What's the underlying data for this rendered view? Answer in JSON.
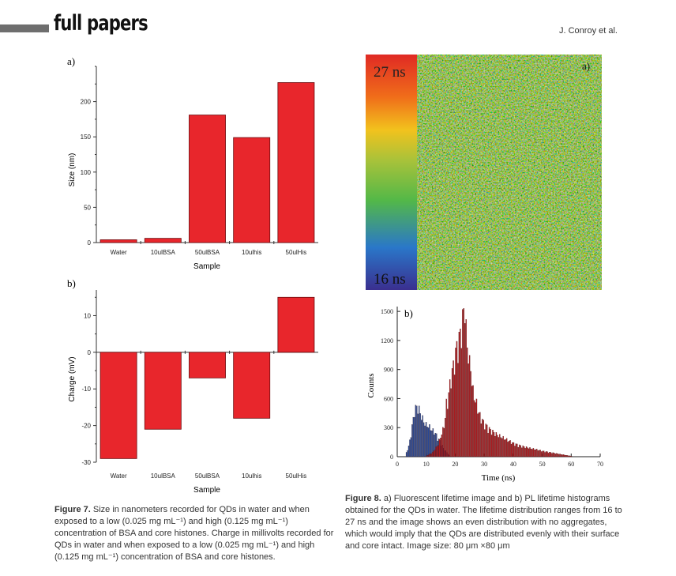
{
  "header": {
    "section": "full papers",
    "author": "J. Conroy et al."
  },
  "chart_data": [
    {
      "type": "bar",
      "panel": "a)",
      "categories": [
        "Water",
        "10ulBSA",
        "50ulBSA",
        "10ulhis",
        "50ulHis"
      ],
      "values": [
        4,
        6,
        181,
        149,
        227
      ],
      "xlabel": "Sample",
      "ylabel": "Size (nm)",
      "ylim": [
        0,
        250
      ],
      "yticks": [
        0,
        50,
        100,
        150,
        200
      ],
      "color": "#e8262c"
    },
    {
      "type": "bar",
      "panel": "b)",
      "categories": [
        "Water",
        "10ulBSA",
        "50ulBSA",
        "10ulhis",
        "50ulHis"
      ],
      "values": [
        -29,
        -21,
        -7,
        -18,
        15
      ],
      "xlabel": "Sample",
      "ylabel": "Charge (mV)",
      "ylim": [
        -30,
        17
      ],
      "yticks": [
        -30,
        -20,
        -10,
        0,
        10
      ],
      "color": "#e8262c"
    },
    {
      "type": "heatmap",
      "panel": "a)",
      "colorbar_max_label": "27 ns",
      "colorbar_min_label": "16 ns",
      "colormap": [
        "#3a2f8f",
        "#2a77c9",
        "#53b848",
        "#a8c23a",
        "#f2c21d",
        "#f06d1a",
        "#e02a24"
      ]
    },
    {
      "type": "histogram",
      "panel": "b)",
      "xlabel": "Time (ns)",
      "ylabel": "Counts",
      "xlim": [
        0,
        70
      ],
      "ylim": [
        0,
        1550
      ],
      "xticks": [
        0,
        10,
        20,
        30,
        40,
        50,
        60,
        70
      ],
      "yticks": [
        0,
        300,
        600,
        900,
        1200,
        1500
      ],
      "series": [
        {
          "color": "#2b4c9a",
          "x": [
            3,
            4,
            5,
            6,
            7,
            8,
            9,
            10,
            11,
            12,
            13,
            14,
            15,
            16,
            17,
            18
          ],
          "values": [
            40,
            120,
            300,
            470,
            490,
            420,
            340,
            310,
            290,
            260,
            230,
            180,
            130,
            80,
            40,
            15
          ]
        },
        {
          "color": "#b01e22",
          "x": [
            10,
            12,
            14,
            16,
            17,
            18,
            19,
            20,
            21,
            22,
            23,
            24,
            25,
            26,
            27,
            28,
            29,
            30,
            32,
            34,
            36,
            38,
            40,
            42,
            44,
            46,
            48,
            50,
            52,
            55,
            58,
            60
          ],
          "values": [
            10,
            40,
            120,
            300,
            520,
            700,
            880,
            1020,
            1150,
            1250,
            1480,
            1080,
            870,
            640,
            520,
            430,
            360,
            320,
            260,
            220,
            190,
            160,
            130,
            110,
            95,
            80,
            70,
            55,
            45,
            30,
            15,
            5
          ]
        }
      ]
    }
  ],
  "captions": {
    "fig7_label": "Figure 7.",
    "fig7_text": "Size in nanometers recorded for QDs in water and when exposed to a low (0.025 mg mL⁻¹) and high (0.125 mg mL⁻¹) concentration of BSA and core histones. Charge in millivolts recorded for QDs in water and when exposed to a low (0.025 mg mL⁻¹) and high (0.125 mg mL⁻¹) concentration of BSA and core histones.",
    "fig8_label": "Figure 8.",
    "fig8_text": "a) Fluorescent lifetime image and b) PL lifetime histograms obtained for the QDs in water. The lifetime distribution ranges from 16 to 27 ns and the image shows an even distribution with no aggregates, which would imply that the QDs are distributed evenly with their surface and core intact. Image size: 80 μm ×80 μm"
  }
}
